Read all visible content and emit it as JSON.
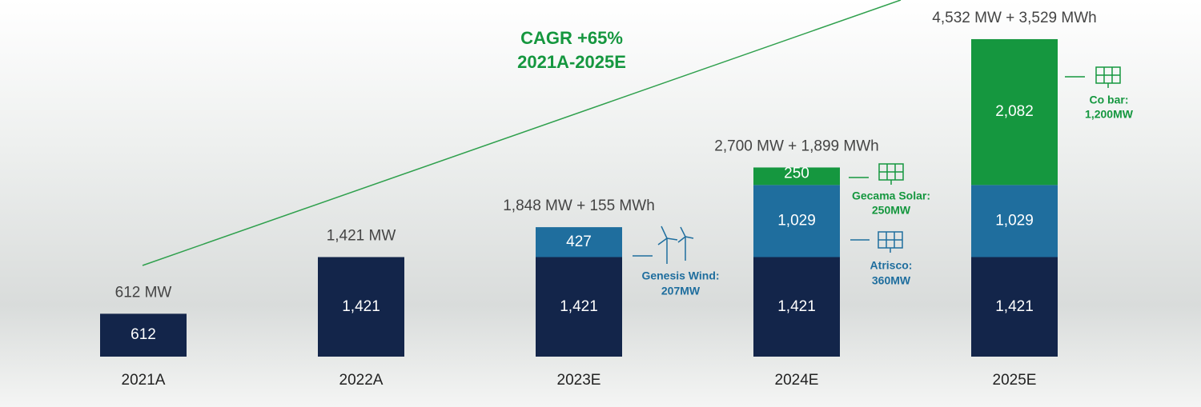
{
  "chart_data": {
    "type": "stacked_bar",
    "categories": [
      "2021A",
      "2022A",
      "2023E",
      "2024E",
      "2025E"
    ],
    "series": [
      {
        "color": "#13254a",
        "values": [
          612,
          1421,
          1421,
          1421,
          1421
        ],
        "value_labels": [
          "612",
          "1,421",
          "1,421",
          "1,421",
          "1,421"
        ]
      },
      {
        "color": "#1f6e9e",
        "values": [
          null,
          null,
          427,
          1029,
          1029
        ],
        "value_labels": [
          null,
          null,
          "427",
          "1,029",
          "1,029"
        ]
      },
      {
        "color": "#15973f",
        "values": [
          null,
          null,
          null,
          250,
          2082
        ],
        "value_labels": [
          null,
          null,
          null,
          "250",
          "2,082"
        ]
      }
    ],
    "total_labels": [
      "612 MW",
      "1,421 MW",
      "1,848 MW + 155 MWh",
      "2,700 MW + 1,899 MWh",
      "4,532 MW + 3,529 MWh"
    ],
    "ylim": [
      0,
      4600
    ],
    "annotations": {
      "cagr": [
        "CAGR +65%",
        "2021A-2025E"
      ],
      "genesis": [
        "Genesis Wind:",
        "207MW"
      ],
      "gecama": [
        "Gecama Solar:",
        "250MW"
      ],
      "atrisco": [
        "Atrisco:",
        "360MW"
      ],
      "cobar": [
        "Co bar:",
        "1,200MW"
      ]
    }
  }
}
